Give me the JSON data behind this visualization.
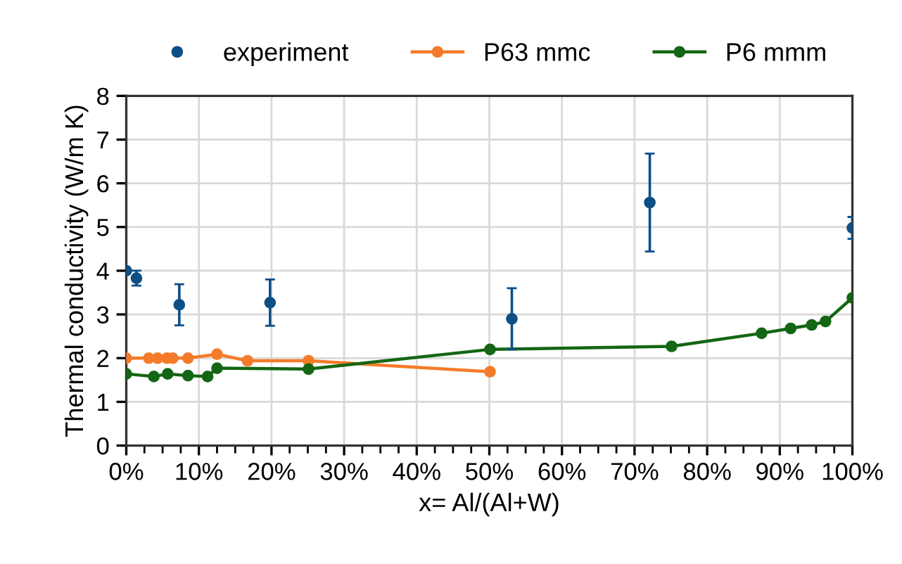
{
  "chart_data": {
    "type": "line",
    "xlabel": "x= Al/(Al+W)",
    "ylabel": "Thermal conductivity (W/m K)",
    "xlim": [
      0,
      100
    ],
    "ylim": [
      0,
      8
    ],
    "xticks": [
      {
        "value": 0,
        "label": "0%"
      },
      {
        "value": 2.5,
        "label": null
      },
      {
        "value": 5,
        "label": null
      },
      {
        "value": 7.5,
        "label": null
      },
      {
        "value": 10,
        "label": "10%"
      },
      {
        "value": 12.5,
        "label": null
      },
      {
        "value": 15,
        "label": null
      },
      {
        "value": 17.5,
        "label": null
      },
      {
        "value": 20,
        "label": "20%"
      },
      {
        "value": 22.5,
        "label": null
      },
      {
        "value": 25,
        "label": null
      },
      {
        "value": 27.5,
        "label": null
      },
      {
        "value": 30,
        "label": "30%"
      },
      {
        "value": 32.5,
        "label": null
      },
      {
        "value": 35,
        "label": null
      },
      {
        "value": 37.5,
        "label": null
      },
      {
        "value": 40,
        "label": "40%"
      },
      {
        "value": 42.5,
        "label": null
      },
      {
        "value": 45,
        "label": null
      },
      {
        "value": 47.5,
        "label": null
      },
      {
        "value": 50,
        "label": "50%"
      },
      {
        "value": 52.5,
        "label": null
      },
      {
        "value": 55,
        "label": null
      },
      {
        "value": 57.5,
        "label": null
      },
      {
        "value": 60,
        "label": "60%"
      },
      {
        "value": 62.5,
        "label": null
      },
      {
        "value": 65,
        "label": null
      },
      {
        "value": 67.5,
        "label": null
      },
      {
        "value": 70,
        "label": "70%"
      },
      {
        "value": 72.5,
        "label": null
      },
      {
        "value": 75,
        "label": null
      },
      {
        "value": 77.5,
        "label": null
      },
      {
        "value": 80,
        "label": "80%"
      },
      {
        "value": 82.5,
        "label": null
      },
      {
        "value": 85,
        "label": null
      },
      {
        "value": 87.5,
        "label": null
      },
      {
        "value": 90,
        "label": "90%"
      },
      {
        "value": 92.5,
        "label": null
      },
      {
        "value": 95,
        "label": null
      },
      {
        "value": 97.5,
        "label": null
      },
      {
        "value": 100,
        "label": "100%"
      }
    ],
    "yticks": [
      0,
      1,
      2,
      3,
      4,
      5,
      6,
      7,
      8
    ],
    "grid": true,
    "legend": "top",
    "marker": "circle",
    "series": [
      {
        "name": "experiment",
        "type": "scatter",
        "color": "#0e4f86",
        "x": [
          0,
          1.4,
          7.3,
          19.8,
          53.1,
          72.1,
          100
        ],
        "values": [
          4.0,
          3.83,
          3.22,
          3.27,
          2.9,
          5.56,
          4.98
        ],
        "errors": [
          null,
          0.17,
          0.47,
          0.53,
          0.7,
          1.12,
          0.25
        ]
      },
      {
        "name": "P63 mmc",
        "color": "#f47b2a",
        "x": [
          0,
          3.1,
          4.3,
          5.6,
          6.4,
          8.5,
          12.5,
          16.7,
          25.1,
          50.1
        ],
        "values": [
          2.0,
          2.0,
          2.0,
          2.0,
          2.0,
          2.0,
          2.09,
          1.94,
          1.94,
          1.69
        ]
      },
      {
        "name": "P6 mmm",
        "color": "#146614",
        "x": [
          0,
          3.8,
          5.7,
          8.5,
          11.2,
          12.5,
          25.1,
          50.1,
          75.1,
          87.5,
          91.5,
          94.4,
          96.3,
          100
        ],
        "values": [
          1.64,
          1.58,
          1.64,
          1.6,
          1.58,
          1.77,
          1.75,
          2.2,
          2.27,
          2.57,
          2.68,
          2.76,
          2.84,
          3.38
        ]
      }
    ]
  }
}
